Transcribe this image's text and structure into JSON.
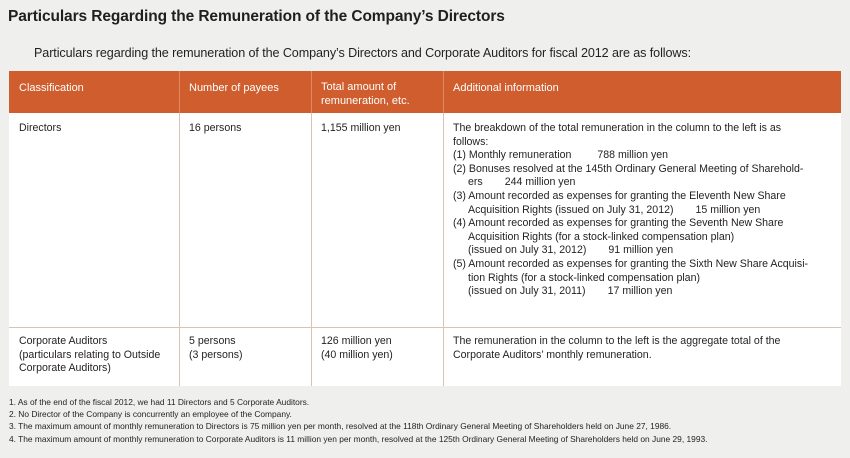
{
  "title": "Particulars Regarding the Remuneration of the Company’s Directors",
  "intro": "Particulars regarding the remuneration of the Company’s Directors and Corporate Auditors for fiscal 2012 are as follows:",
  "table": {
    "headers": {
      "classification": "Classification",
      "payees": "Number of payees",
      "amount_line1": "Total amount of",
      "amount_line2": "remuneration, etc.",
      "info": "Additional information"
    },
    "rows": [
      {
        "classification": [
          "Directors"
        ],
        "payees": [
          "16 persons"
        ],
        "amount": [
          "1,155 million yen"
        ],
        "info_intro": [
          "The breakdown of the total remuneration in the column to the left is as",
          "follows:"
        ],
        "items": [
          {
            "lines": [
              "(1) Monthly remuneration"
            ],
            "value": "788 million yen"
          },
          {
            "lines": [
              "(2) Bonuses resolved at the 145th Ordinary General Meeting of Sharehold-",
              "ers"
            ],
            "value": "244 million yen"
          },
          {
            "lines": [
              "(3) Amount recorded as expenses for granting the Eleventh New Share",
              "Acquisition Rights (issued on July 31, 2012)"
            ],
            "value": "15 million yen"
          },
          {
            "lines": [
              "(4) Amount recorded as expenses for granting the Seventh New Share",
              "Acquisition Rights (for a stock-linked compensation plan)",
              "(issued on July 31, 2012)"
            ],
            "value": "91 million yen"
          },
          {
            "lines": [
              "(5) Amount recorded as expenses for granting the Sixth New Share Acquisi-",
              "tion Rights (for a stock-linked compensation plan)",
              "(issued on July 31, 2011)"
            ],
            "value": "17 million yen"
          }
        ]
      },
      {
        "classification": [
          "Corporate Auditors",
          "(particulars relating to Outside",
          "Corporate Auditors)"
        ],
        "payees": [
          "5 persons",
          "(3 persons)"
        ],
        "amount": [
          "126 million yen",
          "(40 million yen)"
        ],
        "info_intro": [
          "The remuneration in the column to the left is the aggregate total of the",
          "Corporate Auditors’ monthly remuneration."
        ]
      }
    ]
  },
  "notes": [
    "1. As of the end of the fiscal 2012, we had 11 Directors and 5 Corporate Auditors.",
    "2. No Director of the Company is concurrently an employee of the Company.",
    "3. The maximum amount of monthly remuneration to Directors is 75 million yen per month, resolved at the 118th Ordinary General Meeting of Shareholders held on June 27, 1986.",
    "4. The maximum amount of monthly remuneration to Corporate Auditors is 11 million yen per month, resolved at the 125th Ordinary General Meeting of Shareholders held on June 29, 1993."
  ]
}
